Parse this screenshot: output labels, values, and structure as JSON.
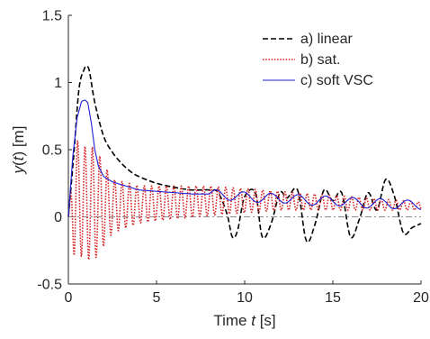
{
  "chart_data": {
    "type": "line",
    "title": "",
    "xlabel_parts": [
      "Time ",
      "t",
      " [s]"
    ],
    "ylabel_parts": [
      "y",
      "(",
      "t",
      ") [m]"
    ],
    "xlim": [
      0,
      20
    ],
    "ylim": [
      -0.5,
      1.5
    ],
    "xticks": [
      0,
      5,
      10,
      15,
      20
    ],
    "xtick_labels": [
      "0",
      "5",
      "10",
      "15",
      "20"
    ],
    "yticks": [
      -0.5,
      0,
      0.5,
      1,
      1.5
    ],
    "ytick_labels": [
      "-0.5",
      "0",
      "0.5",
      "1",
      "1.5"
    ],
    "grid": false,
    "legend_position": "top-right",
    "reference_line": {
      "y": 0,
      "color": "#8c8c8c",
      "style": "dash-dot"
    },
    "series": [
      {
        "name": "a) linear",
        "color": "#000000",
        "style": "dashed",
        "x": [
          0,
          0.3,
          0.6,
          0.9,
          1.05,
          1.2,
          1.5,
          2.0,
          2.5,
          3.0,
          3.5,
          4.0,
          5.0,
          6.0,
          7.0,
          8.0,
          8.5,
          9.0,
          9.3,
          9.6,
          10.0,
          10.6,
          11.0,
          11.5,
          12.0,
          12.4,
          13.0,
          13.5,
          14.0,
          14.5,
          15.0,
          15.5,
          16.0,
          16.5,
          17.0,
          17.5,
          18.0,
          18.5,
          19.0,
          19.5,
          20.0
        ],
        "y": [
          0,
          0.45,
          0.95,
          1.1,
          1.12,
          1.08,
          0.85,
          0.6,
          0.48,
          0.4,
          0.34,
          0.3,
          0.25,
          0.22,
          0.2,
          0.2,
          0.18,
          0.02,
          -0.15,
          -0.1,
          0.15,
          0.18,
          -0.15,
          -0.05,
          0.18,
          0.14,
          0.2,
          -0.18,
          -0.05,
          0.2,
          0.12,
          0.18,
          -0.15,
          -0.02,
          0.18,
          0.05,
          0.28,
          0.15,
          -0.12,
          -0.08,
          -0.05
        ]
      },
      {
        "name": "b) sat.",
        "color": "#d62728",
        "style": "dotted",
        "envelope": [
          [
            0,
            0.42
          ],
          [
            0.5,
            0.42
          ],
          [
            1.5,
            0.42
          ],
          [
            2.5,
            0.2
          ],
          [
            4,
            0.14
          ],
          [
            5,
            0.13
          ],
          [
            8,
            0.11
          ],
          [
            12,
            0.07
          ],
          [
            16,
            0.05
          ],
          [
            20,
            0.03
          ]
        ],
        "mean": [
          [
            0,
            0
          ],
          [
            0.5,
            0.15
          ],
          [
            1.0,
            0.1
          ],
          [
            1.5,
            0.1
          ],
          [
            2.5,
            0.08
          ],
          [
            5,
            0.1
          ],
          [
            8,
            0.12
          ],
          [
            12,
            0.12
          ],
          [
            16,
            0.1
          ],
          [
            20,
            0.08
          ]
        ],
        "period": 0.42
      },
      {
        "name": "c) soft VSC",
        "color": "#1f1fd6",
        "style": "solid",
        "x": [
          0,
          0.25,
          0.5,
          0.75,
          0.95,
          1.1,
          1.3,
          1.5,
          1.7,
          2.0,
          2.5,
          3.0,
          3.5,
          4.0,
          5.0,
          6.0,
          7.0,
          8.0,
          9.0,
          10.0,
          11.0,
          12.0,
          13.0,
          14.0,
          15.0,
          16.0,
          17.0,
          18.0,
          19.0,
          20.0
        ],
        "y": [
          0,
          0.45,
          0.74,
          0.86,
          0.87,
          0.85,
          0.7,
          0.5,
          0.38,
          0.3,
          0.26,
          0.24,
          0.22,
          0.2,
          0.19,
          0.18,
          0.17,
          0.17,
          0.16,
          0.15,
          0.14,
          0.14,
          0.13,
          0.12,
          0.12,
          0.11,
          0.1,
          0.1,
          0.09,
          0.09
        ],
        "wiggle": {
          "amplitude": 0.035,
          "period": 1.55,
          "start": 8
        }
      }
    ]
  }
}
